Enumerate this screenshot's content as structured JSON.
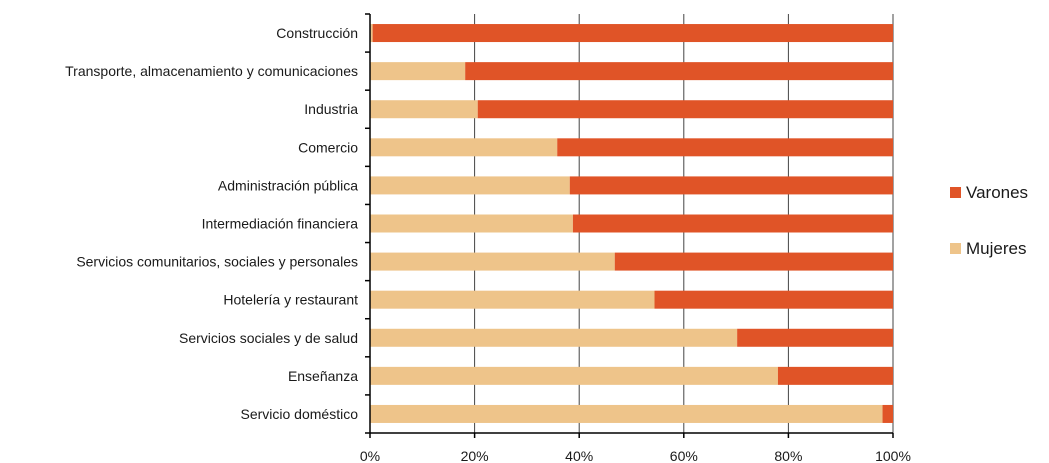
{
  "chart_data": {
    "type": "bar",
    "orientation": "horizontal",
    "stacked": "percent",
    "categories": [
      "Construcción",
      "Transporte, almacenamiento y comunicaciones",
      "Industria",
      "Comercio",
      "Administración pública",
      "Intermediación financiera",
      "Servicios comunitarios, sociales y personales",
      "Hotelería y restaurant",
      "Servicios sociales y de salud",
      "Enseñanza",
      "Servicio doméstico"
    ],
    "series": [
      {
        "name": "Mujeres",
        "color": "#EEC48A",
        "values": [
          0.5,
          18.2,
          20.6,
          35.8,
          38.2,
          38.8,
          46.8,
          54.4,
          70.2,
          78.0,
          98.0
        ]
      },
      {
        "name": "Varones",
        "color": "#E05427",
        "values": [
          99.5,
          81.8,
          79.4,
          64.2,
          61.8,
          61.2,
          53.2,
          45.6,
          29.8,
          22.0,
          2.0
        ]
      }
    ],
    "xlim": [
      0,
      100
    ],
    "xticks": [
      "0%",
      "20%",
      "40%",
      "60%",
      "80%",
      "100%"
    ],
    "grid": "vertical",
    "legend": {
      "position": "right",
      "entries": [
        {
          "label": "Varones",
          "color": "#E05427"
        },
        {
          "label": "Mujeres",
          "color": "#EEC48A"
        }
      ]
    }
  }
}
